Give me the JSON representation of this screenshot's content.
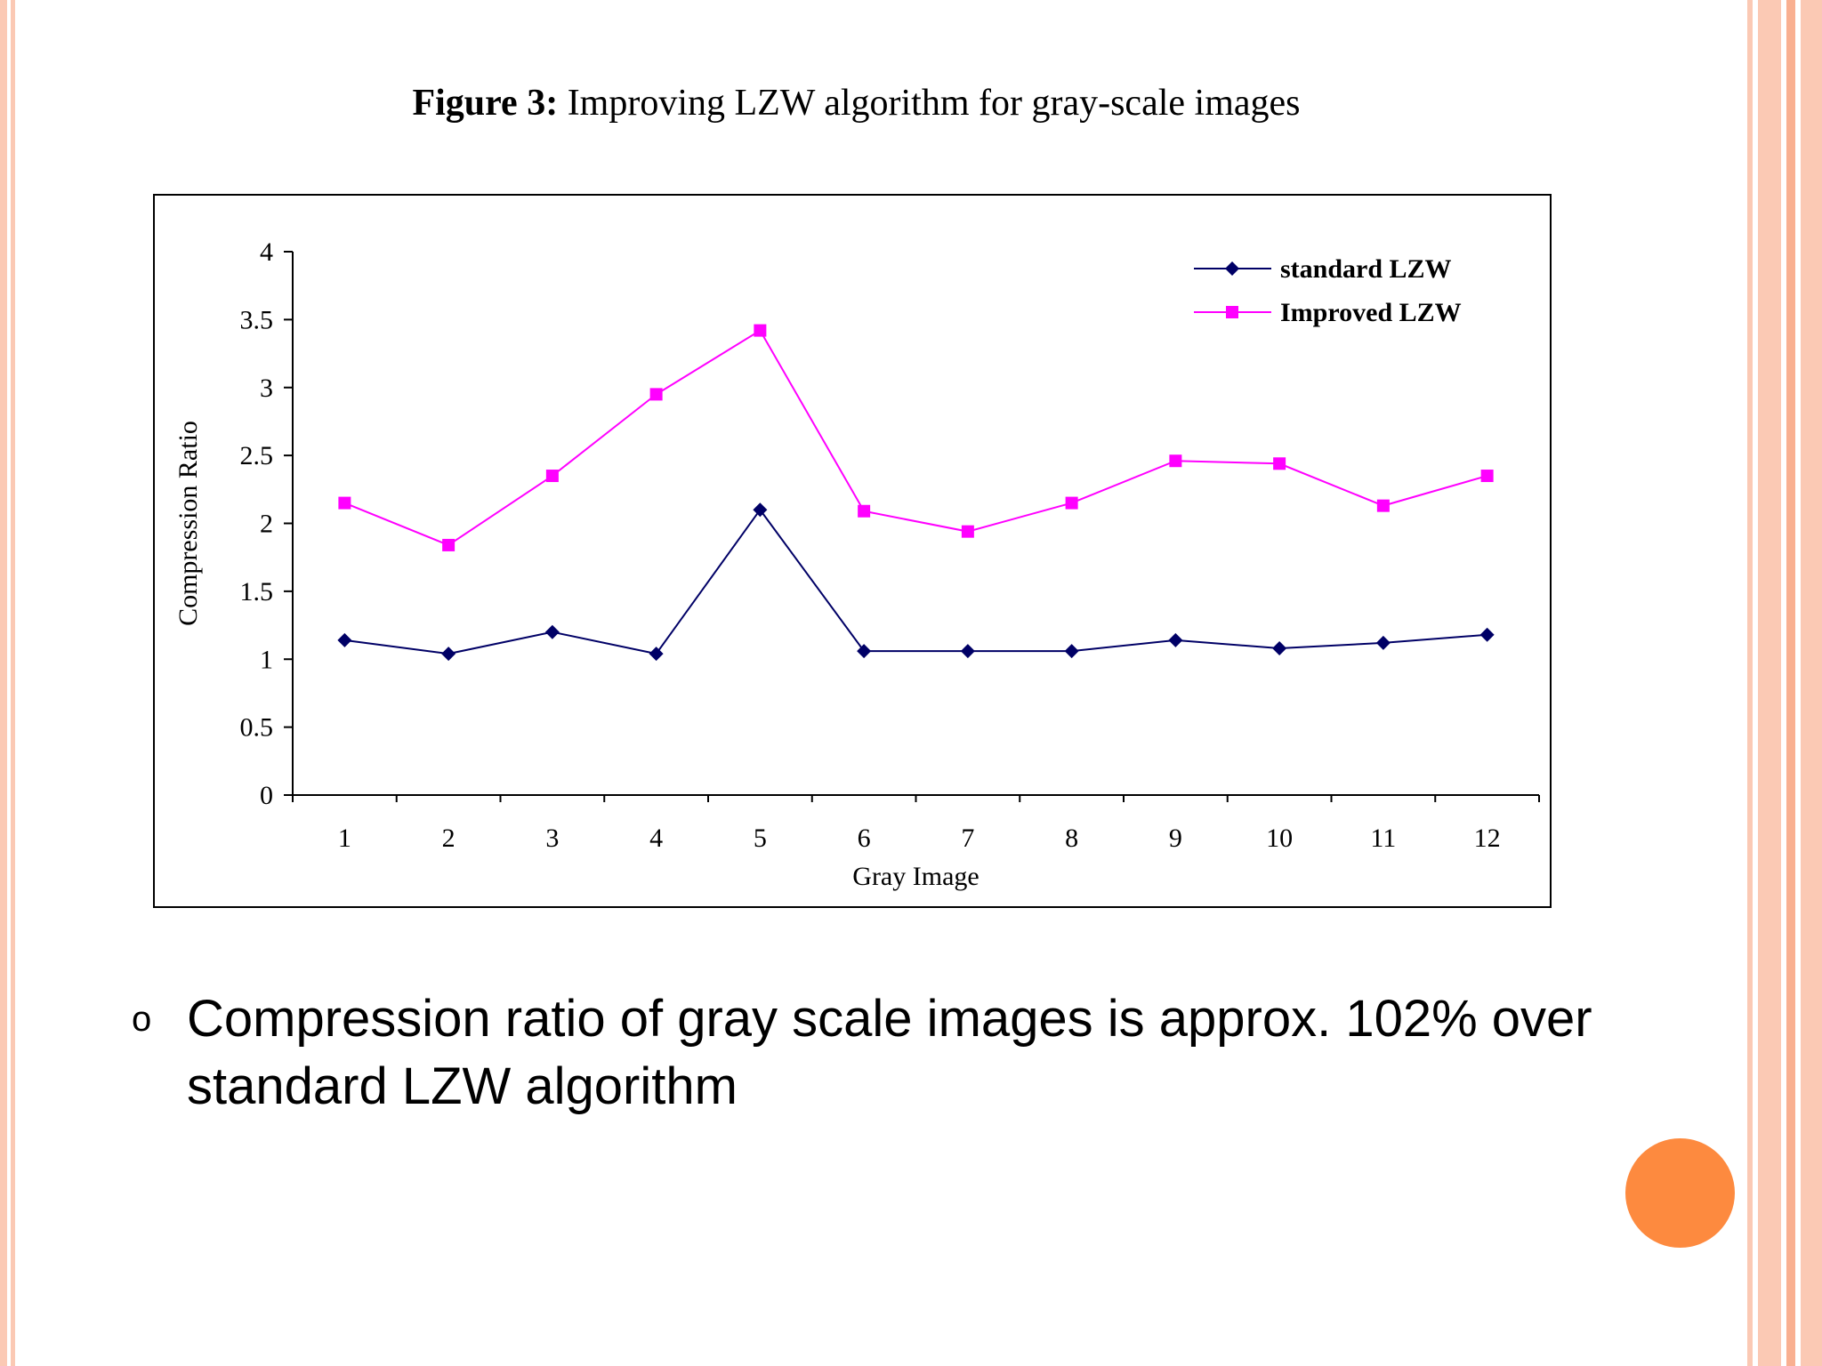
{
  "slide": {
    "title_bold": "Figure 3:",
    "title_rest": " Improving LZW algorithm for gray-scale images",
    "bullet_marker": "o",
    "bullet_text": "Compression ratio of gray scale images is approx. 102% over standard LZW algorithm"
  },
  "colors": {
    "stripe_accent": "#fbc9b4",
    "stripe_strong": "#f9b091",
    "orange_dot": "#fd8a3f",
    "standard_series": "#000066",
    "improved_series": "#ff00ff"
  },
  "chart_data": {
    "type": "line",
    "title": "",
    "xlabel": "Gray Image",
    "ylabel": "Compression Ratio",
    "categories": [
      "1",
      "2",
      "3",
      "4",
      "5",
      "6",
      "7",
      "8",
      "9",
      "10",
      "11",
      "12"
    ],
    "ylim": [
      0,
      4
    ],
    "yticks": [
      "0",
      "0.5",
      "1",
      "1.5",
      "2",
      "2.5",
      "3",
      "3.5",
      "4"
    ],
    "grid": false,
    "legend_position": "top-right",
    "series": [
      {
        "name": "standard LZW",
        "marker": "diamond",
        "color": "#000066",
        "values": [
          1.14,
          1.04,
          1.2,
          1.04,
          2.1,
          1.06,
          1.06,
          1.06,
          1.14,
          1.08,
          1.12,
          1.18
        ]
      },
      {
        "name": "Improved LZW",
        "marker": "square",
        "color": "#ff00ff",
        "values": [
          2.15,
          1.84,
          2.35,
          2.95,
          3.42,
          2.09,
          1.94,
          2.15,
          2.46,
          2.44,
          2.13,
          2.35
        ]
      }
    ]
  }
}
